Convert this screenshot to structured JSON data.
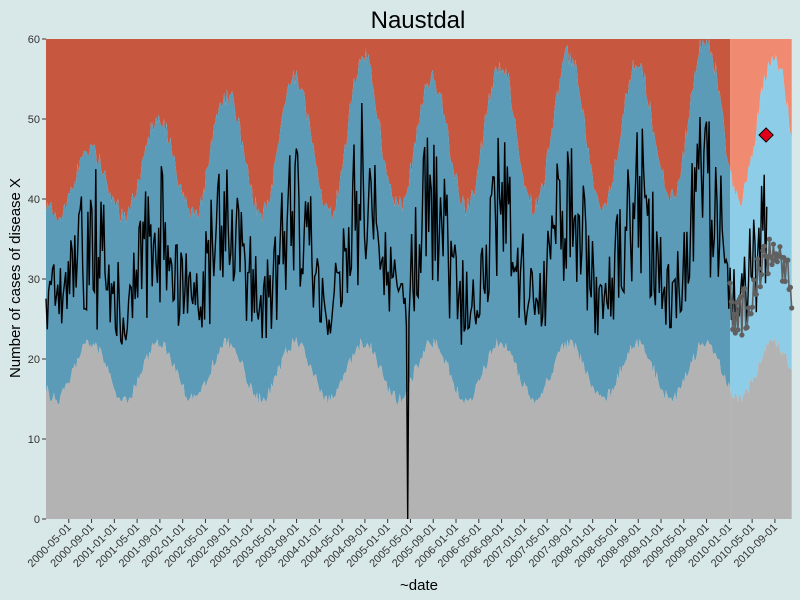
{
  "chart_data": {
    "type": "line",
    "title": "Naustdal",
    "xlabel": "~date",
    "ylabel": "Number of cases of disease X",
    "ylim": [
      0,
      60
    ],
    "yticks": [
      0,
      10,
      20,
      30,
      40,
      50,
      60
    ],
    "xlim": [
      "2000-01-01",
      "2010-12-01"
    ],
    "xticks": [
      "2000-05-01",
      "2000-09-01",
      "2001-01-01",
      "2001-05-01",
      "2001-09-01",
      "2002-01-01",
      "2002-05-01",
      "2002-09-01",
      "2003-01-01",
      "2003-05-01",
      "2003-09-01",
      "2004-01-01",
      "2004-05-01",
      "2004-09-01",
      "2005-01-01",
      "2005-05-01",
      "2005-09-01",
      "2006-01-01",
      "2006-05-01",
      "2006-09-01",
      "2007-01-01",
      "2007-05-01",
      "2007-09-01",
      "2008-01-01",
      "2008-05-01",
      "2008-09-01",
      "2009-01-01",
      "2009-05-01",
      "2009-09-01",
      "2010-01-01",
      "2010-05-01",
      "2010-09-01"
    ],
    "forecast_start": "2010-01-01",
    "grid": false,
    "legend": "none",
    "colors": {
      "background": "#d8e8e8",
      "upper_band": "#c8573f",
      "normal_band": "#5b9bb8",
      "lower_band": "#b3b3b3",
      "forecast_upper_band": "#f08a70",
      "forecast_normal_band": "#8ecde8",
      "observed_line": "#000000",
      "forecast_points": "#606060",
      "alert_marker": "#e0001a"
    },
    "band_model": {
      "description_free": true,
      "lower_min": [
        21,
        21,
        22,
        22,
        23,
        23,
        24,
        24,
        25,
        25,
        26
      ],
      "lower_max": [
        15,
        15,
        15,
        14,
        14,
        14,
        15,
        15,
        15,
        15,
        15
      ],
      "upper_peak": [
        46,
        50,
        53,
        55,
        58,
        55,
        57,
        58,
        57,
        60,
        58
      ],
      "upper_trough": [
        38,
        38,
        38,
        38,
        38,
        39,
        39,
        39,
        39,
        40,
        40
      ]
    },
    "observed_summary": {
      "min": 0,
      "min_date": "2005-04-15",
      "max": 52,
      "max_date": "2004-08-15"
    },
    "alert_point": {
      "date": "2010-07-15",
      "value": 48
    },
    "forecast_points_range": [
      22,
      36
    ]
  }
}
